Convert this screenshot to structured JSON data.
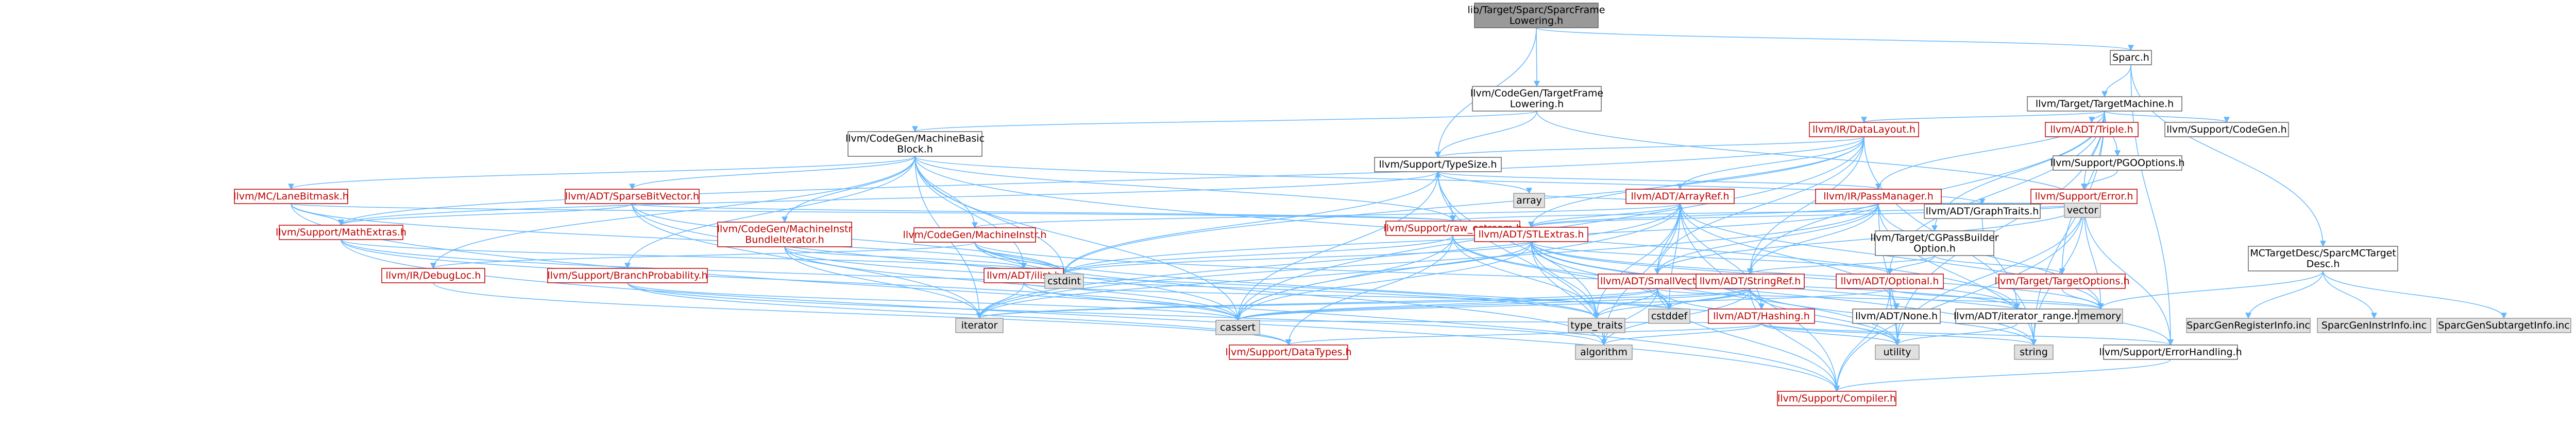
{
  "colors": {
    "edge": "#63b8ff",
    "focus_fill": "#999999",
    "internal_text": "#bf0000",
    "external_fill": "#e0e0e0"
  },
  "nodes": {
    "sparcframe": [
      "lib/Target/Sparc/SparcFrame",
      "Lowering.h"
    ],
    "sparc": [
      "Sparc.h"
    ],
    "cgtfl": [
      "llvm/CodeGen/TargetFrame",
      "Lowering.h"
    ],
    "tmachine": [
      "llvm/Target/TargetMachine.h"
    ],
    "datalayout": [
      "llvm/IR/DataLayout.h"
    ],
    "triple": [
      "llvm/ADT/Triple.h"
    ],
    "codegen": [
      "llvm/Support/CodeGen.h"
    ],
    "pgooptions": [
      "llvm/Support/PGOOptions.h"
    ],
    "mbb": [
      "llvm/CodeGen/MachineBasic",
      "Block.h"
    ],
    "typesize": [
      "llvm/Support/TypeSize.h"
    ],
    "passmanager": [
      "llvm/IR/PassManager.h"
    ],
    "error": [
      "llvm/Support/Error.h"
    ],
    "cgpassbuilder": [
      "llvm/Target/CGPassBuilder",
      "Option.h"
    ],
    "mcdesc": [
      "MCTargetDesc/SparcMCTarget",
      "Desc.h"
    ],
    "lanebitmask": [
      "llvm/MC/LaneBitmask.h"
    ],
    "sparsebitvector": [
      "llvm/ADT/SparseBitVector.h"
    ],
    "bundleiterator": [
      "llvm/CodeGen/MachineInstr",
      "BundleIterator.h"
    ],
    "machineinstr": [
      "llvm/CodeGen/MachineInstr.h"
    ],
    "arrayref": [
      "llvm/ADT/ArrayRef.h"
    ],
    "graphtraits": [
      "llvm/ADT/GraphTraits.h"
    ],
    "mathextras": [
      "llvm/Support/MathExtras.h"
    ],
    "debugloc": [
      "llvm/IR/DebugLoc.h"
    ],
    "branchprob": [
      "llvm/Support/BranchProbability.h"
    ],
    "ilist": [
      "llvm/ADT/ilist.h"
    ],
    "rawostream": [
      "llvm/Support/raw_ostream.h"
    ],
    "stlextras": [
      "llvm/ADT/STLExtras.h"
    ],
    "smallvector": [
      "llvm/ADT/SmallVector.h"
    ],
    "stringref": [
      "llvm/ADT/StringRef.h"
    ],
    "optional": [
      "llvm/ADT/Optional.h"
    ],
    "targetoptions": [
      "llvm/Target/TargetOptions.h"
    ],
    "hashing": [
      "llvm/ADT/Hashing.h"
    ],
    "none": [
      "llvm/ADT/None.h"
    ],
    "iterrange": [
      "llvm/ADT/iterator_range.h"
    ],
    "datatypes": [
      "llvm/Support/DataTypes.h"
    ],
    "errorhandling": [
      "llvm/Support/ErrorHandling.h"
    ],
    "compiler": [
      "llvm/Support/Compiler.h"
    ],
    "regsinfo": [
      "SparcGenRegisterInfo.inc"
    ],
    "instrinfo": [
      "SparcGenInstrInfo.inc"
    ],
    "subtargetinfo": [
      "SparcGenSubtargetInfo.inc"
    ],
    "array": [
      "array"
    ],
    "vector": [
      "vector"
    ],
    "cstdint": [
      "cstdint"
    ],
    "iterator": [
      "iterator"
    ],
    "cstddef": [
      "cstddef"
    ],
    "type_traits": [
      "type_traits"
    ],
    "memory": [
      "memory"
    ],
    "algorithm": [
      "algorithm"
    ],
    "utility": [
      "utility"
    ],
    "string": [
      "string"
    ],
    "cassert": [
      "cassert"
    ]
  }
}
